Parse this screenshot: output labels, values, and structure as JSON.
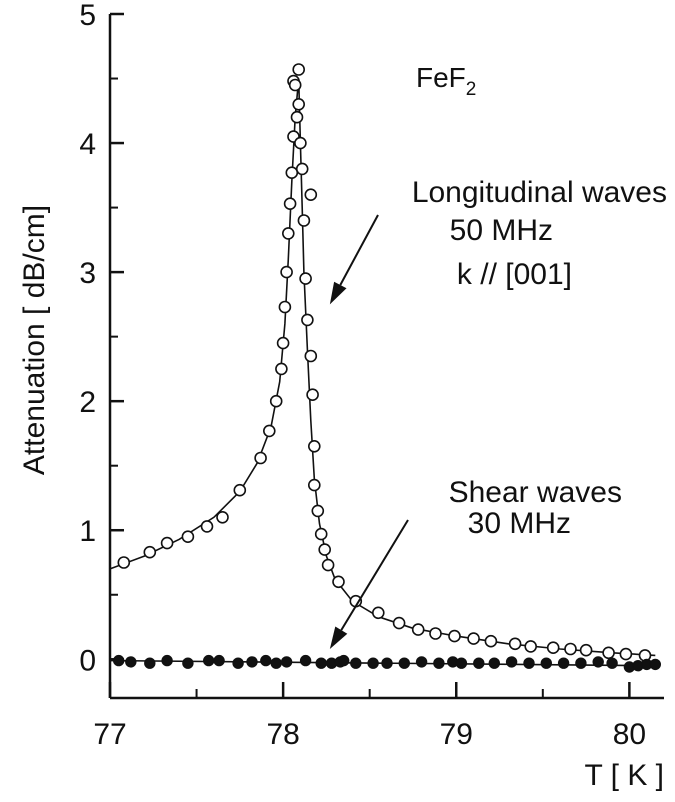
{
  "chart_data": {
    "type": "scatter",
    "title": "FeF₂",
    "title_main": "FeF",
    "title_sub": "2",
    "xlabel": "T [ K ]",
    "ylabel": "Attenuation [ dB/cm]",
    "xlim": [
      77.0,
      80.2
    ],
    "ylim": [
      -0.3,
      5.0
    ],
    "x_ticks": [
      77,
      78,
      79,
      80
    ],
    "y_ticks": [
      0,
      1,
      2,
      3,
      4,
      5
    ],
    "grid": false,
    "annotations": [
      {
        "id": "longitudinal",
        "lines": [
          "Longitudinal waves",
          "50 MHz",
          "k // [001]"
        ],
        "arrow_to": [
          78.27,
          2.75
        ]
      },
      {
        "id": "shear",
        "lines": [
          "Shear waves",
          "30 MHz"
        ],
        "arrow_to": [
          78.27,
          0.08
        ]
      }
    ],
    "series": [
      {
        "name": "Longitudinal waves",
        "marker": "open-circle",
        "points": [
          [
            77.08,
            0.75
          ],
          [
            77.23,
            0.83
          ],
          [
            77.33,
            0.9
          ],
          [
            77.45,
            0.95
          ],
          [
            77.56,
            1.03
          ],
          [
            77.65,
            1.1
          ],
          [
            77.75,
            1.31
          ],
          [
            77.87,
            1.56
          ],
          [
            77.92,
            1.77
          ],
          [
            77.96,
            2.0
          ],
          [
            77.99,
            2.25
          ],
          [
            78.0,
            2.45
          ],
          [
            78.01,
            2.73
          ],
          [
            78.02,
            3.0
          ],
          [
            78.03,
            3.3
          ],
          [
            78.04,
            3.53
          ],
          [
            78.05,
            3.77
          ],
          [
            78.06,
            4.05
          ],
          [
            78.06,
            4.48
          ],
          [
            78.07,
            4.45
          ],
          [
            78.08,
            4.2
          ],
          [
            78.09,
            4.3
          ],
          [
            78.09,
            4.57
          ],
          [
            78.1,
            4.0
          ],
          [
            78.11,
            3.8
          ],
          [
            78.12,
            3.4
          ],
          [
            78.13,
            2.95
          ],
          [
            78.14,
            2.63
          ],
          [
            78.16,
            3.6
          ],
          [
            78.16,
            2.35
          ],
          [
            78.17,
            2.05
          ],
          [
            78.18,
            1.65
          ],
          [
            78.18,
            1.35
          ],
          [
            78.2,
            1.15
          ],
          [
            78.22,
            0.97
          ],
          [
            78.24,
            0.85
          ],
          [
            78.26,
            0.73
          ],
          [
            78.32,
            0.6
          ],
          [
            78.42,
            0.45
          ],
          [
            78.55,
            0.36
          ],
          [
            78.67,
            0.28
          ],
          [
            78.78,
            0.23
          ],
          [
            78.88,
            0.2
          ],
          [
            78.99,
            0.18
          ],
          [
            79.1,
            0.16
          ],
          [
            79.2,
            0.14
          ],
          [
            79.34,
            0.12
          ],
          [
            79.43,
            0.1
          ],
          [
            79.56,
            0.09
          ],
          [
            79.66,
            0.08
          ],
          [
            79.75,
            0.07
          ],
          [
            79.88,
            0.05
          ],
          [
            79.98,
            0.04
          ],
          [
            80.09,
            0.03
          ]
        ],
        "fit_curve": [
          [
            77.0,
            0.7
          ],
          [
            77.2,
            0.8
          ],
          [
            77.4,
            0.93
          ],
          [
            77.6,
            1.1
          ],
          [
            77.75,
            1.3
          ],
          [
            77.85,
            1.52
          ],
          [
            77.93,
            1.8
          ],
          [
            77.98,
            2.15
          ],
          [
            78.01,
            2.6
          ],
          [
            78.03,
            3.1
          ],
          [
            78.05,
            3.7
          ],
          [
            78.07,
            4.2
          ],
          [
            78.09,
            4.5
          ],
          [
            78.1,
            4.0
          ],
          [
            78.11,
            3.5
          ],
          [
            78.12,
            3.0
          ],
          [
            78.14,
            2.4
          ],
          [
            78.16,
            1.85
          ],
          [
            78.18,
            1.4
          ],
          [
            78.21,
            1.05
          ],
          [
            78.25,
            0.8
          ],
          [
            78.3,
            0.62
          ],
          [
            78.4,
            0.45
          ],
          [
            78.55,
            0.33
          ],
          [
            78.75,
            0.24
          ],
          [
            79.0,
            0.18
          ],
          [
            79.3,
            0.12
          ],
          [
            79.6,
            0.08
          ],
          [
            79.9,
            0.05
          ],
          [
            80.15,
            0.03
          ]
        ]
      },
      {
        "name": "Shear waves",
        "marker": "filled-circle",
        "points": [
          [
            77.05,
            -0.01
          ],
          [
            77.12,
            -0.02
          ],
          [
            77.23,
            -0.03
          ],
          [
            77.33,
            -0.01
          ],
          [
            77.45,
            -0.03
          ],
          [
            77.57,
            -0.01
          ],
          [
            77.63,
            -0.01
          ],
          [
            77.74,
            -0.03
          ],
          [
            77.82,
            -0.02
          ],
          [
            77.9,
            -0.01
          ],
          [
            77.96,
            -0.03
          ],
          [
            78.02,
            -0.02
          ],
          [
            78.13,
            -0.01
          ],
          [
            78.22,
            -0.03
          ],
          [
            78.28,
            -0.03
          ],
          [
            78.33,
            -0.02
          ],
          [
            78.35,
            -0.01
          ],
          [
            78.42,
            -0.03
          ],
          [
            78.52,
            -0.03
          ],
          [
            78.6,
            -0.03
          ],
          [
            78.7,
            -0.03
          ],
          [
            78.8,
            -0.02
          ],
          [
            78.9,
            -0.03
          ],
          [
            78.98,
            -0.02
          ],
          [
            79.03,
            -0.03
          ],
          [
            79.13,
            -0.03
          ],
          [
            79.22,
            -0.03
          ],
          [
            79.32,
            -0.02
          ],
          [
            79.42,
            -0.03
          ],
          [
            79.52,
            -0.03
          ],
          [
            79.62,
            -0.03
          ],
          [
            79.72,
            -0.03
          ],
          [
            79.82,
            -0.02
          ],
          [
            79.9,
            -0.03
          ],
          [
            80.0,
            -0.06
          ],
          [
            80.05,
            -0.05
          ],
          [
            80.1,
            -0.04
          ],
          [
            80.15,
            -0.04
          ]
        ],
        "fit_curve": [
          [
            77.0,
            -0.01
          ],
          [
            80.15,
            -0.05
          ]
        ]
      }
    ]
  }
}
